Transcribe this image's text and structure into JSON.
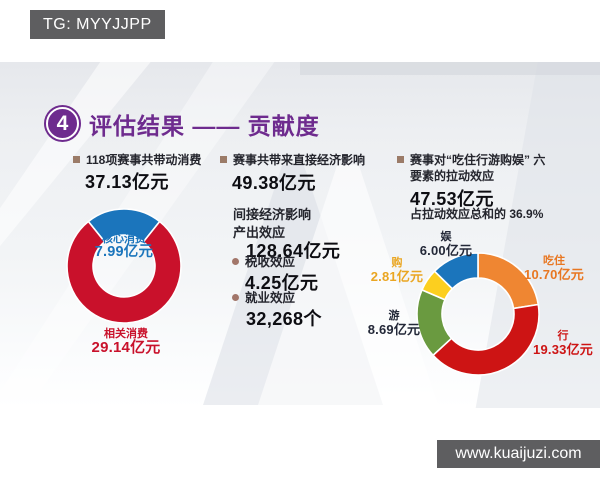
{
  "watermarks": {
    "top": "TG: MYYJJPP",
    "bottom": "www.kuaijuzi.com"
  },
  "colors": {
    "accent_purple": "#6e2b8e",
    "banner_bg": "#5e5e60",
    "bullet_square": "#9b7b68",
    "bullet_dot": "#a2766a",
    "text_dark": "#24252d",
    "core_blue": "#1b75bc",
    "related_red": "#c9112b"
  },
  "title": {
    "badge": "4",
    "text": "评估结果 —— 贡献度"
  },
  "sections": {
    "consumption": {
      "header": "118项赛事共带动消费",
      "value": "37.13亿元"
    },
    "economic": {
      "direct_header": "赛事共带来直接经济影响",
      "direct_value": "49.38亿元",
      "indirect_header": "间接经济影响",
      "output_label": "产出效应",
      "output_value": "128.64亿元",
      "tax_label": "税收效应",
      "tax_value": "4.25亿元",
      "employment_label": "就业效应",
      "employment_value": "32,268个"
    },
    "pull_effect": {
      "header": "赛事对“吃住行游购娱” 六要素的拉动效应",
      "value": "47.53亿元",
      "note": "占拉动效应总和的 36.9%"
    }
  },
  "chart_data": [
    {
      "type": "pie",
      "title": "118项赛事共带动消费 37.13亿元",
      "unit": "亿元",
      "total": 37.13,
      "rotation_deg": -38.7,
      "donut": true,
      "segments": [
        {
          "label": "核心消费",
          "value": 7.99,
          "color": "#1b75bc"
        },
        {
          "label": "相关消费",
          "value": 29.14,
          "color": "#c9112b"
        }
      ]
    },
    {
      "type": "pie",
      "title": "赛事对“吃住行游购娱”六要素的拉动效应 47.53亿元",
      "unit": "亿元",
      "total": 47.53,
      "rotation_deg": 0,
      "donut": true,
      "segments": [
        {
          "label": "吃住",
          "value": 10.7,
          "color": "#ef8632"
        },
        {
          "label": "行",
          "value": 19.33,
          "color": "#cd1414"
        },
        {
          "label": "游",
          "value": 8.69,
          "color": "#6a9a40"
        },
        {
          "label": "购",
          "value": 2.81,
          "color": "#fccf1f"
        },
        {
          "label": "娱",
          "value": 6.0,
          "color": "#1b75bc"
        }
      ]
    }
  ],
  "donut_labels": {
    "left_inner": {
      "label": "核心消费",
      "value": "7.99亿元",
      "color": "#1b75bc"
    },
    "left_outer": {
      "label": "相关消费",
      "value": "29.14亿元",
      "color": "#c9112b"
    },
    "right": [
      {
        "label": "娱",
        "value": "6.00亿元",
        "color": "#232838"
      },
      {
        "label": "吃住",
        "value": "10.70亿元",
        "color": "#e87722"
      },
      {
        "label": "行",
        "value": "19.33亿元",
        "color": "#cd1414"
      },
      {
        "label": "游",
        "value": "8.69亿元",
        "color": "#232838"
      },
      {
        "label": "购",
        "value": "2.81亿元",
        "color": "#eaa622"
      }
    ]
  }
}
